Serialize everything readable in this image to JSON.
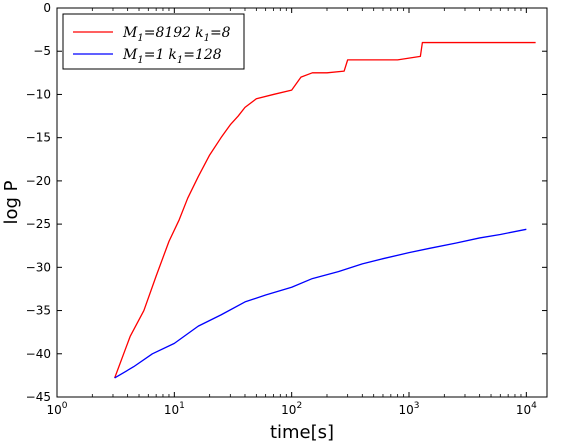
{
  "chart_data": {
    "type": "line",
    "xlabel": "time[s]",
    "ylabel": "log P",
    "x_scale": "log",
    "xlim": [
      1,
      15000
    ],
    "ylim": [
      -45,
      0
    ],
    "grid": false,
    "legend_position": "top-left",
    "x_ticks": [
      {
        "value": 1,
        "label": "10",
        "exp": "0"
      },
      {
        "value": 10,
        "label": "10",
        "exp": "1"
      },
      {
        "value": 100,
        "label": "10",
        "exp": "2"
      },
      {
        "value": 1000,
        "label": "10",
        "exp": "3"
      },
      {
        "value": 10000,
        "label": "10",
        "exp": "4"
      }
    ],
    "y_ticks": [
      0,
      -5,
      -10,
      -15,
      -20,
      -25,
      -30,
      -35,
      -40,
      -45
    ],
    "series": [
      {
        "legend": {
          "m_sym": "M",
          "m_sub": "1",
          "m_val": "=8192",
          "k_sym": "k",
          "k_sub": "1",
          "k_val": "=8"
        },
        "color": "#ff0000",
        "points": [
          [
            3.1,
            -42.8
          ],
          [
            4.2,
            -38
          ],
          [
            5.5,
            -35
          ],
          [
            7,
            -31
          ],
          [
            9,
            -27
          ],
          [
            11,
            -24.5
          ],
          [
            13,
            -22
          ],
          [
            16,
            -19.5
          ],
          [
            20,
            -17
          ],
          [
            25,
            -15
          ],
          [
            30,
            -13.5
          ],
          [
            35,
            -12.5
          ],
          [
            40,
            -11.5
          ],
          [
            50,
            -10.5
          ],
          [
            70,
            -10
          ],
          [
            100,
            -9.5
          ],
          [
            120,
            -8
          ],
          [
            150,
            -7.5
          ],
          [
            200,
            -7.5
          ],
          [
            280,
            -7.3
          ],
          [
            300,
            -6
          ],
          [
            500,
            -6
          ],
          [
            800,
            -6
          ],
          [
            1250,
            -5.6
          ],
          [
            1300,
            -4
          ],
          [
            3000,
            -4
          ],
          [
            5000,
            -4
          ],
          [
            12000,
            -4
          ]
        ]
      },
      {
        "legend": {
          "m_sym": "M",
          "m_sub": "1",
          "m_val": "=1",
          "k_sym": "k",
          "k_sub": "1",
          "k_val": "=128"
        },
        "color": "#0000ff",
        "points": [
          [
            3.1,
            -42.8
          ],
          [
            4.5,
            -41.5
          ],
          [
            6.5,
            -40
          ],
          [
            10,
            -38.8
          ],
          [
            16,
            -36.8
          ],
          [
            25,
            -35.5
          ],
          [
            40,
            -34
          ],
          [
            60,
            -33.2
          ],
          [
            100,
            -32.3
          ],
          [
            150,
            -31.3
          ],
          [
            250,
            -30.5
          ],
          [
            400,
            -29.6
          ],
          [
            600,
            -29
          ],
          [
            1000,
            -28.3
          ],
          [
            1500,
            -27.8
          ],
          [
            2500,
            -27.2
          ],
          [
            4000,
            -26.6
          ],
          [
            6000,
            -26.2
          ],
          [
            10000,
            -25.6
          ]
        ]
      }
    ]
  }
}
